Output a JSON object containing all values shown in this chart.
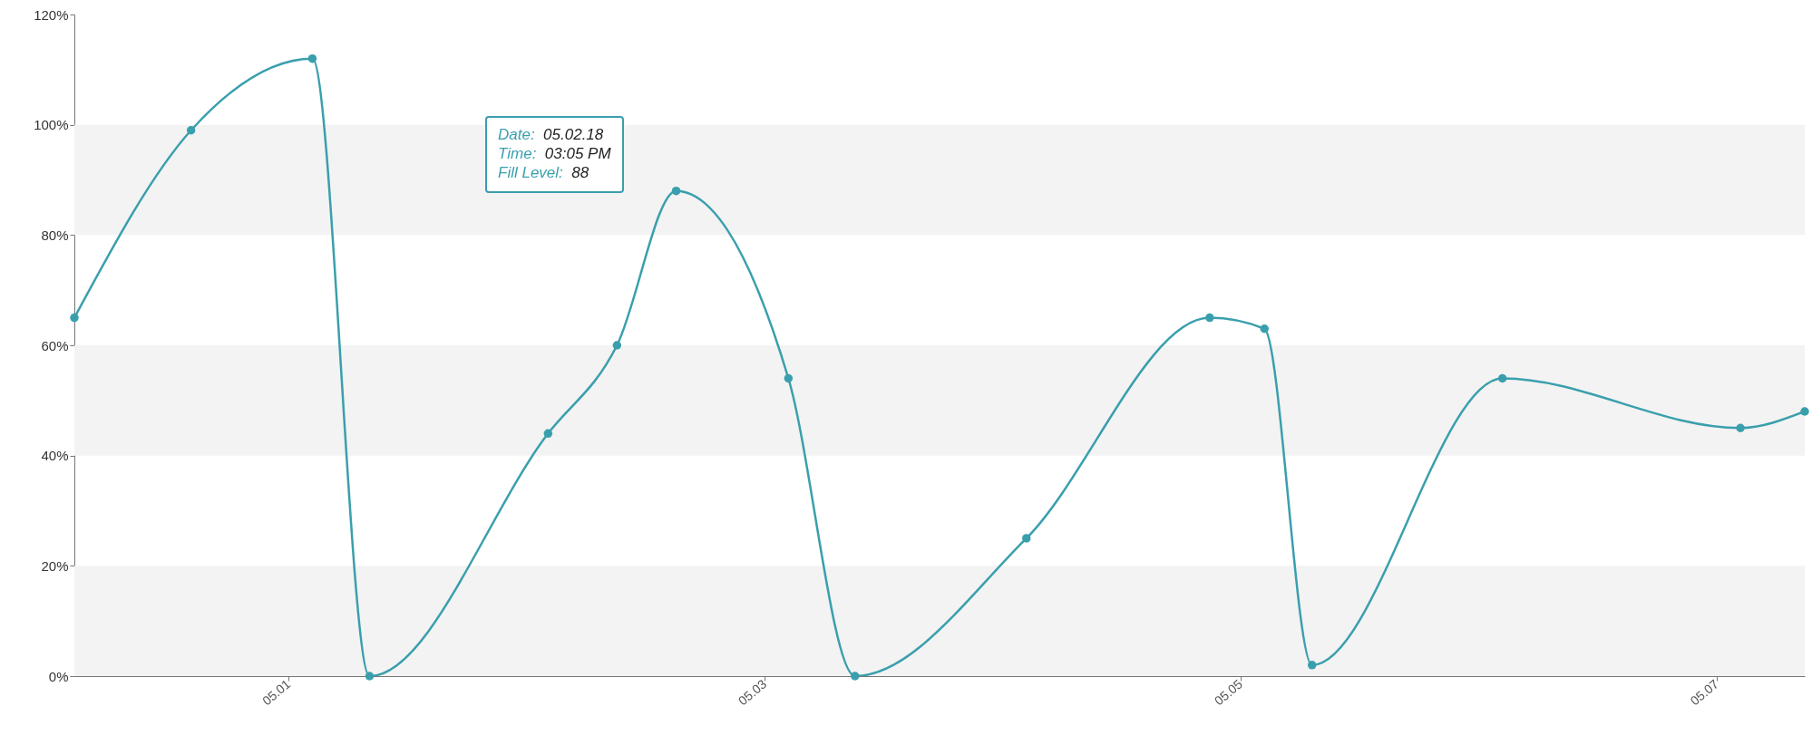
{
  "chart_data": {
    "type": "line",
    "x": [
      "--04-30T02:24",
      "--04-30T14:10",
      "--05-01T02:24",
      "--05-01T08:10",
      "--05-02T02:10",
      "--05-02T09:07",
      "--05-02T15:05",
      "--05-03T02:24",
      "--05-03T09:07",
      "--05-04T02:24",
      "--05-04T20:53",
      "--05-05T02:24",
      "--05-05T07:12",
      "--05-06T02:24",
      "--05-07T02:24",
      "--05-07T08:53"
    ],
    "series": [
      {
        "color": "#3a9fad",
        "values": [
          65,
          99,
          112,
          0,
          44,
          60,
          88,
          54,
          0,
          25,
          65,
          63,
          2,
          54,
          45,
          48
        ]
      }
    ],
    "xlim": [
      "--04-30T02:24",
      "--05-07T08:53"
    ],
    "xticks": [
      {
        "value": "--05-01",
        "label": "05.01"
      },
      {
        "value": "--05-03",
        "label": "05.03"
      },
      {
        "value": "--05-05",
        "label": "05.05"
      },
      {
        "value": "--05-07",
        "label": "05.07"
      }
    ],
    "ylim": [
      0,
      120
    ],
    "yticks": [
      {
        "value": 0,
        "label": "0%"
      },
      {
        "value": 20,
        "label": "20%"
      },
      {
        "value": 40,
        "label": "40%"
      },
      {
        "value": 60,
        "label": "60%"
      },
      {
        "value": 80,
        "label": "80%"
      },
      {
        "value": 100,
        "label": "100%"
      },
      {
        "value": 120,
        "label": "120%"
      }
    ],
    "bands": [
      {
        "axis": "y",
        "from": 0,
        "to": 20,
        "color": "#f3f3f3"
      },
      {
        "axis": "y",
        "from": 40,
        "to": 60,
        "color": "#f3f3f3"
      },
      {
        "axis": "y",
        "from": 80,
        "to": 100,
        "color": "#f3f3f3"
      }
    ],
    "marker": "circle",
    "line_style": "solid",
    "annotations": [
      "Date:  05.02.18\nTime:  03:05 PM\nFill Level:  88"
    ]
  }
}
